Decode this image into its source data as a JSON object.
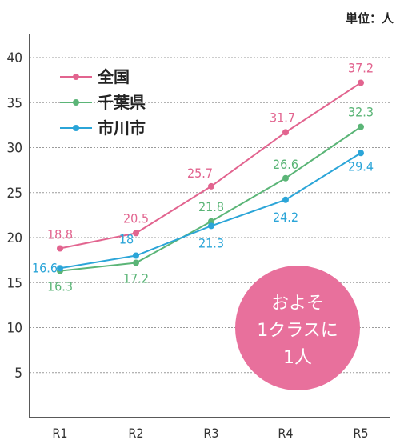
{
  "unit_label": "単位：人",
  "callout": {
    "lines": [
      "およそ",
      "1クラスに",
      "1人"
    ],
    "color": "#e8709c"
  },
  "chart_data": {
    "type": "line",
    "categories": [
      "R1",
      "R2",
      "R3",
      "R4",
      "R5"
    ],
    "ylim": [
      0,
      40
    ],
    "yticks": [
      5,
      10,
      15,
      20,
      25,
      30,
      35,
      40
    ],
    "grid": true,
    "legend_position": "top-left",
    "series": [
      {
        "name": "全国",
        "color": "#e2648f",
        "values": [
          18.8,
          20.5,
          25.7,
          31.7,
          37.2
        ],
        "labels": [
          "18.8",
          "20.5",
          "25.7",
          "31.7",
          "37.2"
        ]
      },
      {
        "name": "千葉県",
        "color": "#5bb577",
        "values": [
          16.3,
          17.2,
          21.8,
          26.6,
          32.3
        ],
        "labels": [
          "16.3",
          "17.2",
          "21.8",
          "26.6",
          "32.3"
        ]
      },
      {
        "name": "市川市",
        "color": "#2ba5d8",
        "values": [
          16.6,
          18.0,
          21.3,
          24.2,
          29.4
        ],
        "labels": [
          "16.6",
          "18",
          "21.3",
          "24.2",
          "29.4"
        ]
      }
    ]
  }
}
